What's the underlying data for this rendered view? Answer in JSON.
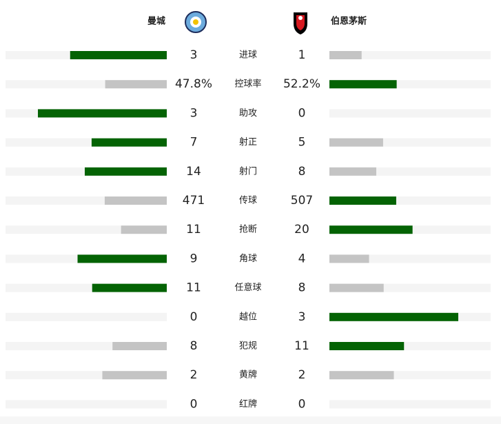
{
  "header": {
    "home": "曼城",
    "away": "伯恩茅斯"
  },
  "stats": [
    {
      "label": "进球",
      "home": 3,
      "away": 1
    },
    {
      "label": "控球率",
      "home": 47.8,
      "away": 52.2,
      "home_label": "47.8%",
      "away_label": "52.2%"
    },
    {
      "label": "助攻",
      "home": 3,
      "away": 0
    },
    {
      "label": "射正",
      "home": 7,
      "away": 5
    },
    {
      "label": "射门",
      "home": 14,
      "away": 8
    },
    {
      "label": "传球",
      "home": 471,
      "away": 507
    },
    {
      "label": "抢断",
      "home": 11,
      "away": 20
    },
    {
      "label": "角球",
      "home": 9,
      "away": 4
    },
    {
      "label": "任意球",
      "home": 11,
      "away": 8
    },
    {
      "label": "越位",
      "home": 0,
      "away": 3
    },
    {
      "label": "犯规",
      "home": 8,
      "away": 11
    },
    {
      "label": "黄牌",
      "home": 2,
      "away": 2
    },
    {
      "label": "红牌",
      "home": 0,
      "away": 0
    }
  ]
}
